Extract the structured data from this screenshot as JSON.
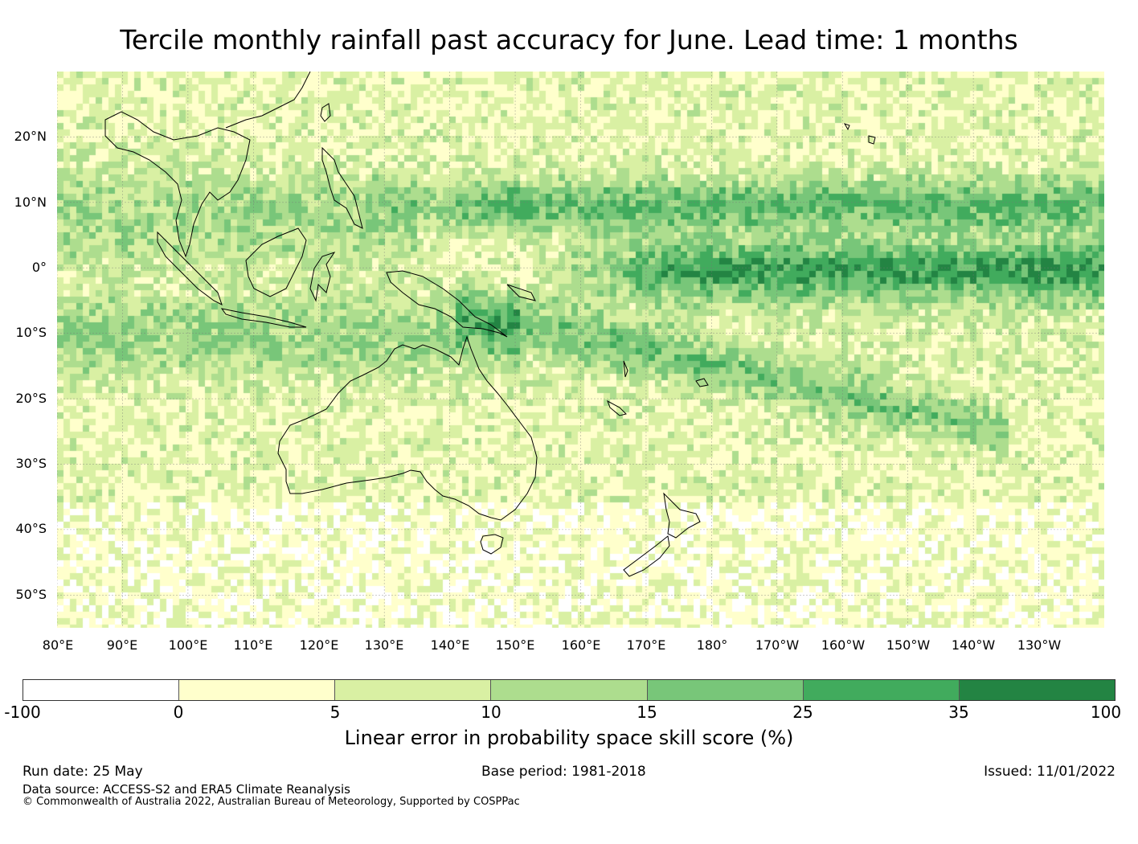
{
  "title": "Tercile monthly rainfall past accuracy for June. Lead time: 1 months",
  "map": {
    "lat_range": [
      -55,
      30
    ],
    "lon_range": [
      80,
      240
    ],
    "lat_ticks": [
      {
        "value": 20,
        "label": "20°N"
      },
      {
        "value": 10,
        "label": "10°N"
      },
      {
        "value": 0,
        "label": "0°"
      },
      {
        "value": -10,
        "label": "10°S"
      },
      {
        "value": -20,
        "label": "20°S"
      },
      {
        "value": -30,
        "label": "30°S"
      },
      {
        "value": -40,
        "label": "40°S"
      },
      {
        "value": -50,
        "label": "50°S"
      }
    ],
    "lon_ticks": [
      {
        "value": 80,
        "label": "80°E"
      },
      {
        "value": 90,
        "label": "90°E"
      },
      {
        "value": 100,
        "label": "100°E"
      },
      {
        "value": 110,
        "label": "110°E"
      },
      {
        "value": 120,
        "label": "120°E"
      },
      {
        "value": 130,
        "label": "130°E"
      },
      {
        "value": 140,
        "label": "140°E"
      },
      {
        "value": 150,
        "label": "150°E"
      },
      {
        "value": 160,
        "label": "160°E"
      },
      {
        "value": 170,
        "label": "170°E"
      },
      {
        "value": 180,
        "label": "180°"
      },
      {
        "value": 190,
        "label": "170°W"
      },
      {
        "value": 200,
        "label": "160°W"
      },
      {
        "value": 210,
        "label": "150°W"
      },
      {
        "value": 220,
        "label": "140°W"
      },
      {
        "value": 230,
        "label": "130°W"
      }
    ],
    "gridlines": true
  },
  "colorbar": {
    "levels": [
      "-100",
      "0",
      "5",
      "10",
      "15",
      "25",
      "35",
      "100"
    ],
    "colors": [
      "#ffffff",
      "#ffffcc",
      "#d9f0a3",
      "#addd8e",
      "#78c679",
      "#41ab5d",
      "#238443"
    ],
    "label": "Linear error in probability space skill score (%)"
  },
  "footer": {
    "run_date": "Run date: 25 May",
    "base_period": "Base period: 1981-2018",
    "issued": "Issued: 11/01/2022",
    "data_source": "Data source: ACCESS-S2 and ERA5 Climate Reanalysis",
    "copyright": "© Commonwealth of Australia 2022, Australian Bureau of Meteorology, Supported by COSPPac"
  }
}
